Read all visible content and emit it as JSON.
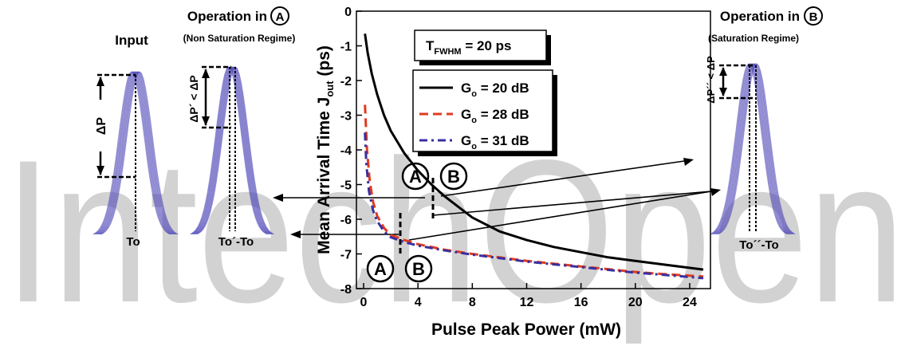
{
  "colors": {
    "accent": "#5048b8",
    "series_black": "#000000",
    "series_red": "#e03a1e",
    "series_blue": "#3a2fa0",
    "watermark": "#d2d2d2"
  },
  "watermark": {
    "text": "IntechOpen"
  },
  "panels": {
    "input": {
      "title": "Input",
      "delta_label": "ΔP",
      "to_label": "To"
    },
    "op_a": {
      "title": "Operation in",
      "badge": "A",
      "subtitle": "(Non Saturation Regime)",
      "delta_label": "ΔP´ < ΔP",
      "to_label": "To´-To"
    },
    "op_b": {
      "title": "Operation in",
      "badge": "B",
      "subtitle": "(Saturation Regime)",
      "delta_label": "ΔP´´ < ΔP",
      "to_label": "To´´-To"
    }
  },
  "chart_data": {
    "type": "line",
    "ylabel_main": "Mean Arrival Time J",
    "ylabel_sub": "out",
    "ylabel_unit": " (ps)",
    "xlabel": "Pulse Peak Power  (mW)",
    "xlim": [
      0,
      25
    ],
    "ylim": [
      -8,
      0
    ],
    "x_ticks": [
      "0",
      "4",
      "8",
      "12",
      "16",
      "20",
      "24"
    ],
    "y_ticks": [
      "0",
      "-1",
      "-2",
      "-3",
      "-4",
      "-5",
      "-6",
      "-7",
      "-8"
    ],
    "annotation": {
      "main": "T",
      "sub": "FWHM",
      "rest": " = 20 ps"
    },
    "markers": {
      "a": "A",
      "b": "B"
    },
    "series": [
      {
        "name_main": "G",
        "name_sub": "o",
        "name_rest": " = 20 dB",
        "style": "solid",
        "points": [
          [
            0.1,
            -0.65
          ],
          [
            0.3,
            -1.2
          ],
          [
            0.6,
            -1.8
          ],
          [
            1,
            -2.4
          ],
          [
            1.5,
            -3.0
          ],
          [
            2,
            -3.45
          ],
          [
            3,
            -4.1
          ],
          [
            4,
            -4.6
          ],
          [
            5,
            -5.0
          ],
          [
            6,
            -5.35
          ],
          [
            8,
            -5.95
          ],
          [
            10,
            -6.35
          ],
          [
            12,
            -6.6
          ],
          [
            14,
            -6.8
          ],
          [
            16,
            -6.95
          ],
          [
            18,
            -7.1
          ],
          [
            20,
            -7.2
          ],
          [
            22,
            -7.3
          ],
          [
            25,
            -7.45
          ]
        ]
      },
      {
        "name_main": "G",
        "name_sub": "o",
        "name_rest": " = 28 dB",
        "style": "dash",
        "points": [
          [
            0.1,
            -2.7
          ],
          [
            0.25,
            -4.0
          ],
          [
            0.45,
            -4.9
          ],
          [
            0.7,
            -5.5
          ],
          [
            1,
            -5.9
          ],
          [
            1.5,
            -6.25
          ],
          [
            2,
            -6.45
          ],
          [
            3,
            -6.6
          ],
          [
            4,
            -6.72
          ],
          [
            6,
            -6.88
          ],
          [
            8,
            -7.0
          ],
          [
            10,
            -7.1
          ],
          [
            12,
            -7.2
          ],
          [
            14,
            -7.28
          ],
          [
            16,
            -7.36
          ],
          [
            18,
            -7.44
          ],
          [
            20,
            -7.52
          ],
          [
            22,
            -7.58
          ],
          [
            25,
            -7.65
          ]
        ]
      },
      {
        "name_main": "G",
        "name_sub": "o",
        "name_rest": " = 31 dB",
        "style": "dashdot",
        "points": [
          [
            0.1,
            -3.5
          ],
          [
            0.2,
            -4.4
          ],
          [
            0.4,
            -5.2
          ],
          [
            0.7,
            -5.75
          ],
          [
            1,
            -6.05
          ],
          [
            1.5,
            -6.35
          ],
          [
            2,
            -6.52
          ],
          [
            3,
            -6.66
          ],
          [
            4,
            -6.76
          ],
          [
            6,
            -6.9
          ],
          [
            8,
            -7.02
          ],
          [
            10,
            -7.12
          ],
          [
            12,
            -7.22
          ],
          [
            14,
            -7.3
          ],
          [
            16,
            -7.38
          ],
          [
            18,
            -7.46
          ],
          [
            20,
            -7.54
          ],
          [
            22,
            -7.6
          ],
          [
            25,
            -7.7
          ]
        ]
      }
    ]
  }
}
